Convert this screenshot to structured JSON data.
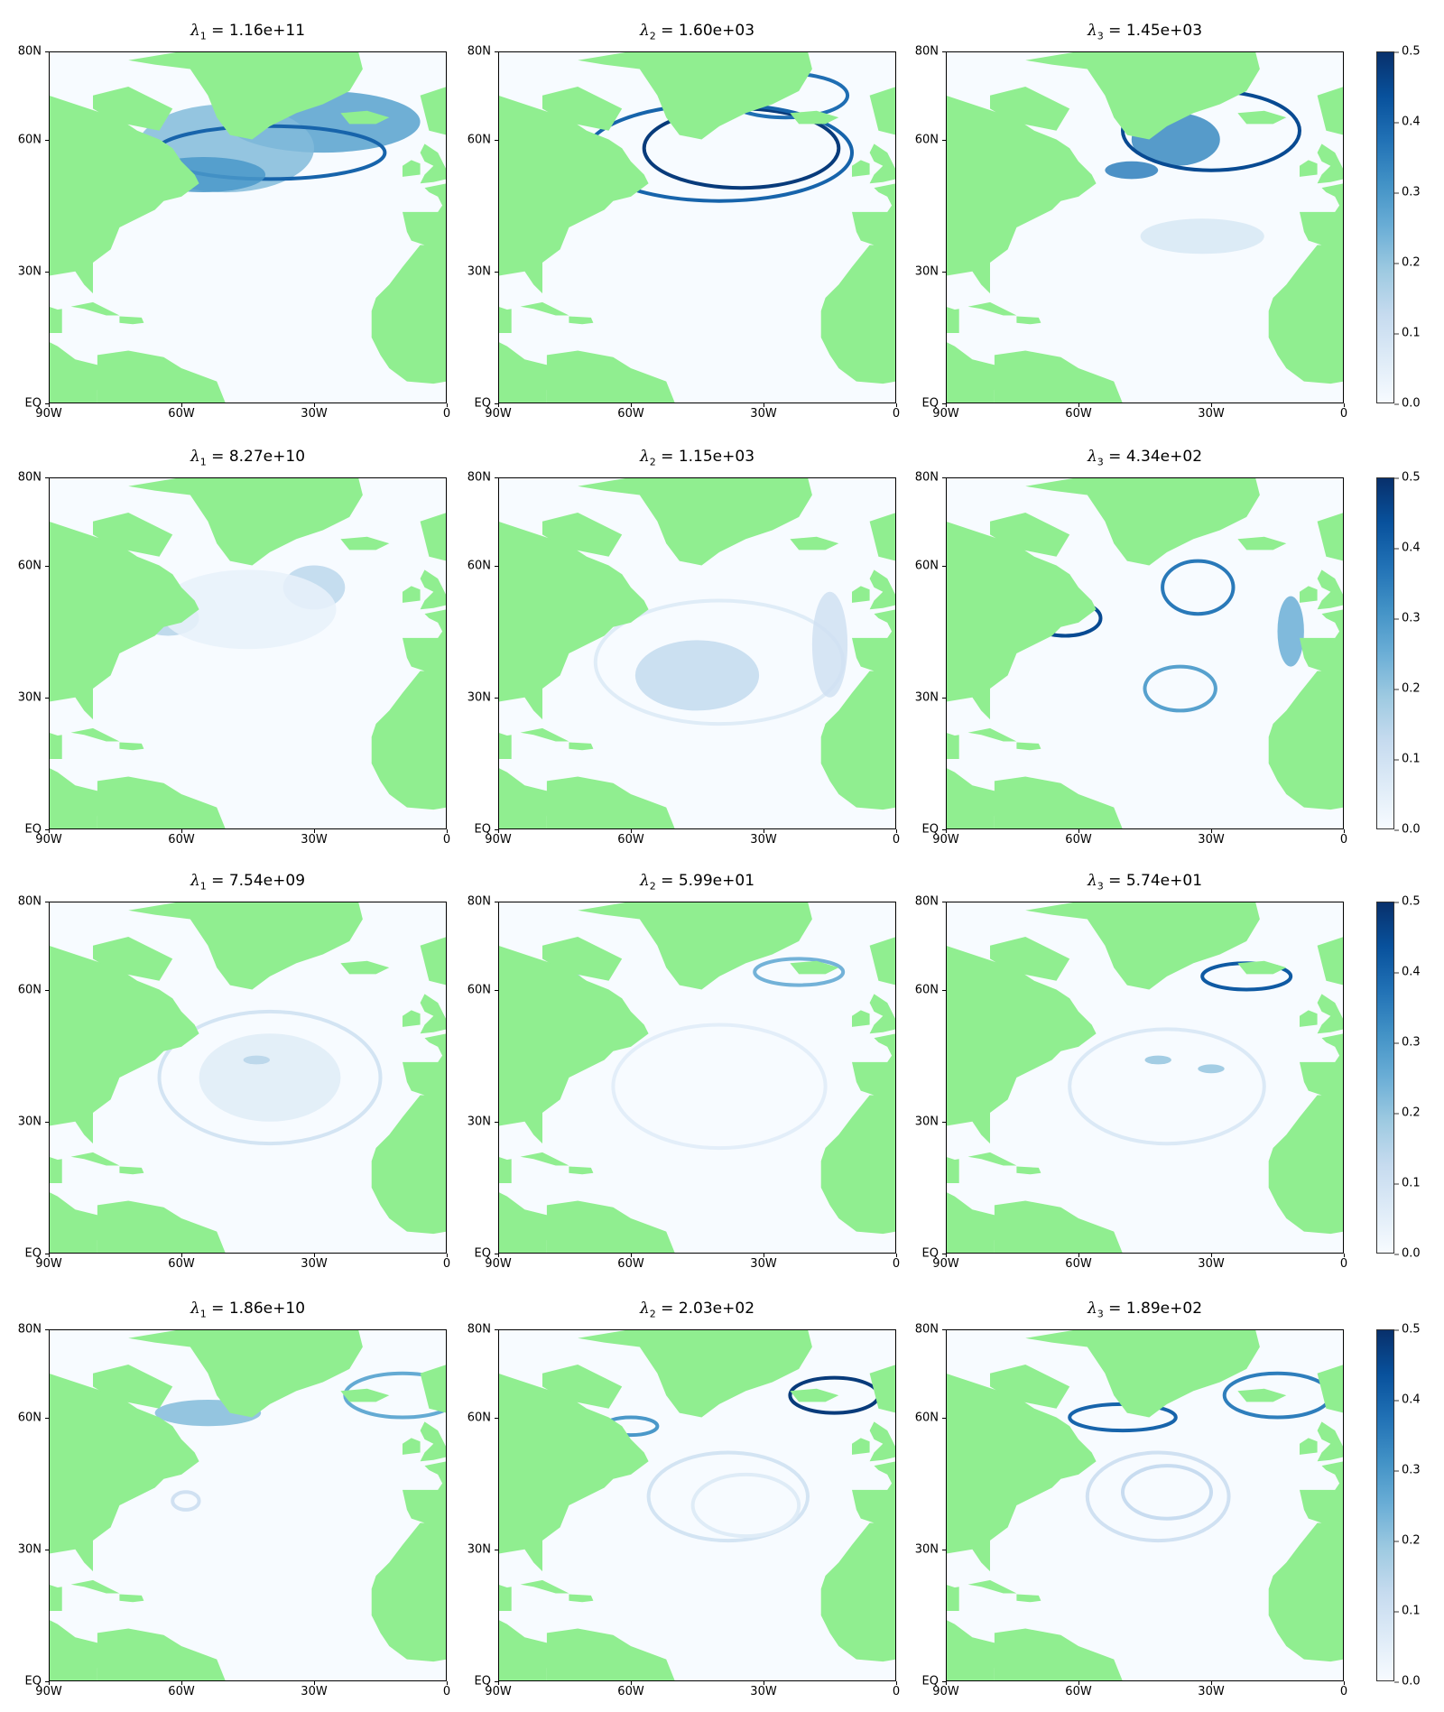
{
  "colors": {
    "land": "#90ee90",
    "cmap": [
      "#f7fbff",
      "#deebf7",
      "#c6dbef",
      "#9ecae1",
      "#6baed6",
      "#4292c6",
      "#2171b5",
      "#08519c",
      "#08306b"
    ]
  },
  "axes": {
    "xticks": [
      "90W",
      "60W",
      "30W",
      "0"
    ],
    "yticks": [
      "80N",
      "60N",
      "30N",
      "EQ"
    ]
  },
  "chart_data": {
    "type": "heatmap",
    "layout": "4 rows x 3 columns of map panels, one colorbar per row",
    "xlim": [
      -90,
      0
    ],
    "ylim": [
      0,
      80
    ],
    "x_tick_values": [
      -90,
      -60,
      -30,
      0
    ],
    "y_tick_values": [
      80,
      60,
      30,
      0
    ],
    "colormap": "Blues",
    "colorbar": {
      "range": [
        0.0,
        0.5
      ],
      "ticks": [
        "0.5",
        "0.4",
        "0.3",
        "0.2",
        "0.1",
        "0.0"
      ]
    },
    "rows": [
      {
        "panels": [
          {
            "symbol": "λ",
            "sub": "1",
            "value": "1.16e+11"
          },
          {
            "symbol": "λ",
            "sub": "2",
            "value": "1.60e+03"
          },
          {
            "symbol": "λ",
            "sub": "3",
            "value": "1.45e+03"
          }
        ]
      },
      {
        "panels": [
          {
            "symbol": "λ",
            "sub": "1",
            "value": "8.27e+10"
          },
          {
            "symbol": "λ",
            "sub": "2",
            "value": "1.15e+03"
          },
          {
            "symbol": "λ",
            "sub": "3",
            "value": "4.34e+02"
          }
        ]
      },
      {
        "panels": [
          {
            "symbol": "λ",
            "sub": "1",
            "value": "7.54e+09"
          },
          {
            "symbol": "λ",
            "sub": "2",
            "value": "5.99e+01"
          },
          {
            "symbol": "λ",
            "sub": "3",
            "value": "5.74e+01"
          }
        ]
      },
      {
        "panels": [
          {
            "symbol": "λ",
            "sub": "1",
            "value": "1.86e+10"
          },
          {
            "symbol": "λ",
            "sub": "2",
            "value": "2.03e+02"
          },
          {
            "symbol": "λ",
            "sub": "3",
            "value": "1.89e+02"
          }
        ]
      }
    ]
  }
}
